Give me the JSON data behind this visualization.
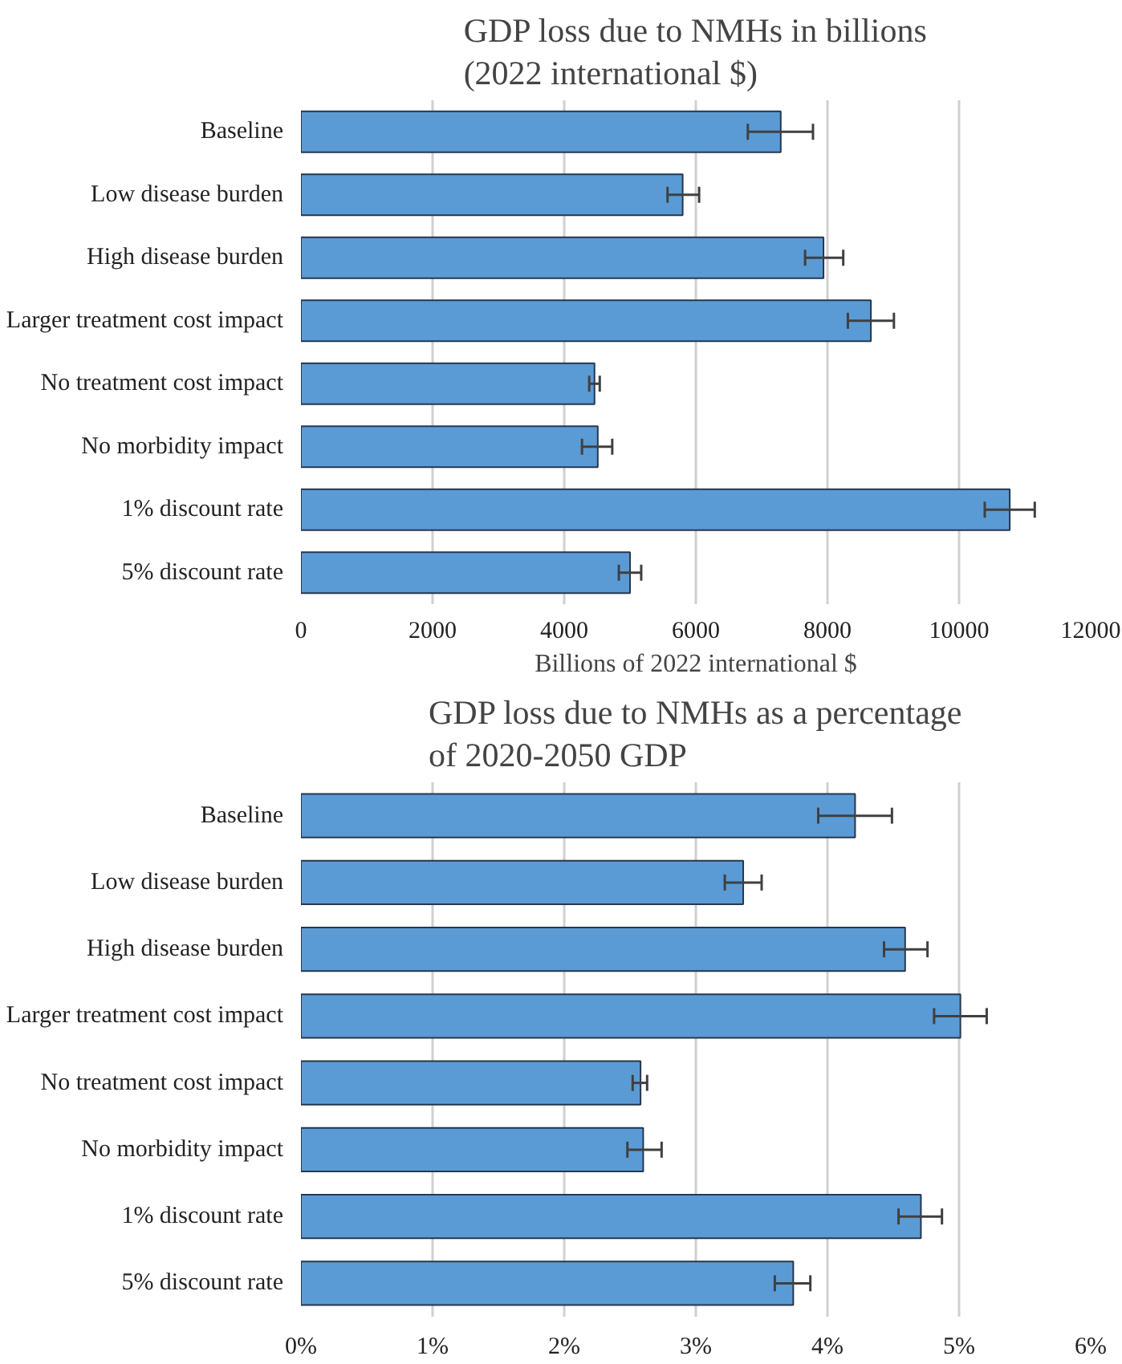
{
  "chart_data": [
    {
      "type": "bar",
      "orientation": "horizontal",
      "title": "GDP loss due to NMHs in billions (2022 international $)",
      "xlabel": "Billions of 2022 international $",
      "categories": [
        "Baseline",
        "Low disease burden",
        "High disease burden",
        "Larger treatment cost impact",
        "No treatment cost impact",
        "No morbidity impact",
        "1% discount rate",
        "5% discount rate"
      ],
      "values": [
        7290,
        5800,
        7940,
        8660,
        4460,
        4510,
        10770,
        5000
      ],
      "errors": [
        [
          6790,
          7780
        ],
        [
          5570,
          6050
        ],
        [
          7660,
          8240
        ],
        [
          8310,
          9010
        ],
        [
          4380,
          4540
        ],
        [
          4270,
          4730
        ],
        [
          10390,
          11150
        ],
        [
          4830,
          5170
        ]
      ],
      "color": "#5b9bd5",
      "xlim": [
        0,
        12000
      ],
      "xticks": [
        0,
        2000,
        4000,
        6000,
        8000,
        10000,
        12000
      ],
      "grid": "x"
    },
    {
      "type": "bar",
      "orientation": "horizontal",
      "title": "GDP loss due to NMHs as a percentage of 2020-2050 GDP",
      "categories": [
        "Baseline",
        "Low disease burden",
        "High disease burden",
        "Larger treatment cost impact",
        "No treatment cost impact",
        "No morbidity impact",
        "1% discount rate",
        "5% discount rate"
      ],
      "values": [
        4.21,
        3.36,
        4.59,
        5.01,
        2.58,
        2.6,
        4.71,
        3.74
      ],
      "errors": [
        [
          3.93,
          4.49
        ],
        [
          3.22,
          3.5
        ],
        [
          4.43,
          4.76
        ],
        [
          4.81,
          5.21
        ],
        [
          2.52,
          2.63
        ],
        [
          2.48,
          2.74
        ],
        [
          4.54,
          4.87
        ],
        [
          3.6,
          3.87
        ]
      ],
      "color": "#5b9bd5",
      "xlim": [
        0,
        6
      ],
      "xticks": [
        {
          "value": 0,
          "label": "0%"
        },
        {
          "value": 1,
          "label": "1%"
        },
        {
          "value": 2,
          "label": "2%"
        },
        {
          "value": 3,
          "label": "3%"
        },
        {
          "value": 4,
          "label": "4%"
        },
        {
          "value": 5,
          "label": "5%"
        },
        {
          "value": 6,
          "label": "6%"
        }
      ],
      "grid": "x"
    }
  ]
}
